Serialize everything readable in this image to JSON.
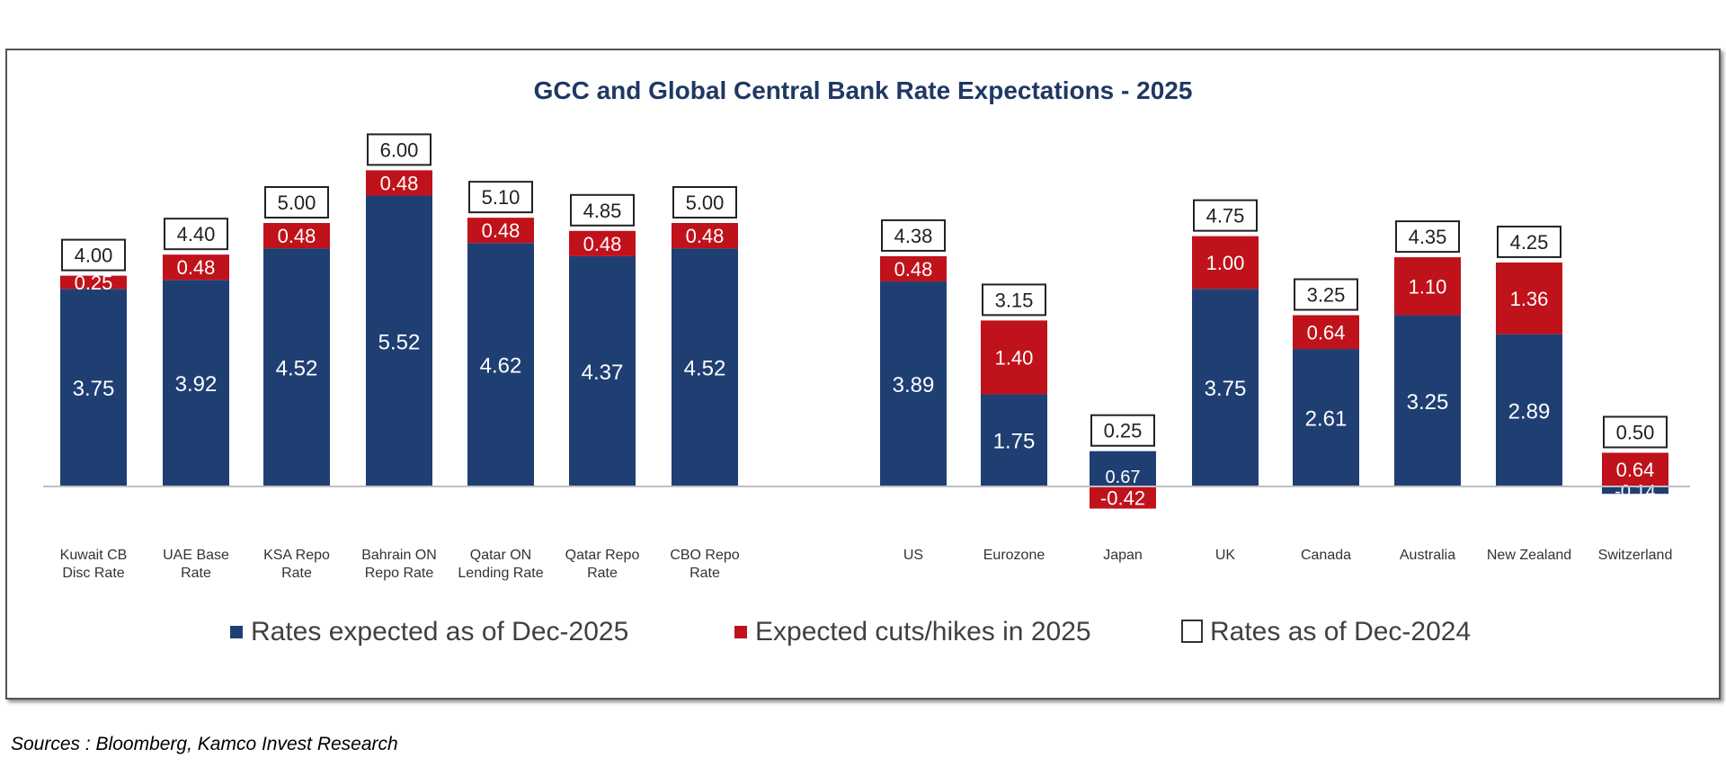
{
  "chart_data": {
    "type": "bar",
    "stacked": true,
    "title": "GCC and Global Central Bank Rate Expectations - 2025",
    "categories": [
      "Kuwait CB Disc Rate",
      "UAE Base Rate",
      "KSA Repo Rate",
      "Bahrain ON Repo Rate",
      "Qatar ON Lending Rate",
      "Qatar Repo Rate",
      "CBO Repo Rate",
      "US",
      "Eurozone",
      "Japan",
      "UK",
      "Canada",
      "Australia",
      "New Zealand",
      "Switzerland"
    ],
    "series": [
      {
        "name": "Rates expected as of Dec-2025",
        "color": "#1f3f73",
        "values": [
          3.75,
          3.92,
          4.52,
          5.52,
          4.62,
          4.37,
          4.52,
          3.89,
          1.75,
          0.67,
          3.75,
          2.61,
          3.25,
          2.89,
          -0.14
        ]
      },
      {
        "name": "Expected cuts/hikes in 2025",
        "color": "#c0121b",
        "values": [
          0.25,
          0.48,
          0.48,
          0.48,
          0.48,
          0.48,
          0.48,
          0.48,
          1.4,
          -0.42,
          1.0,
          0.64,
          1.1,
          1.36,
          0.64
        ]
      }
    ],
    "dec2024": {
      "name": "Rates as of Dec-2024",
      "values": [
        4.0,
        4.4,
        5.0,
        6.0,
        5.1,
        4.85,
        5.0,
        4.38,
        3.15,
        0.25,
        4.75,
        3.25,
        4.35,
        4.25,
        0.5
      ]
    },
    "ylim": [
      -0.5,
      6.3
    ],
    "grid": false,
    "legend_position": "bottom"
  },
  "source": "Sources : Bloomberg, Kamco Invest Research"
}
